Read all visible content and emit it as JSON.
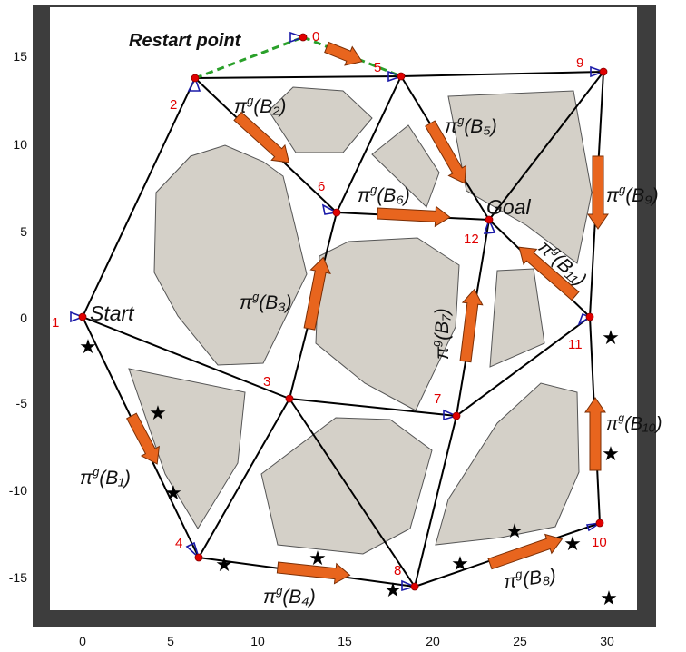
{
  "axes": {
    "x_ticks": [
      "0",
      "5",
      "10",
      "15",
      "20",
      "25",
      "30"
    ],
    "y_ticks": [
      "15",
      "10",
      "5",
      "0",
      "-5",
      "-10",
      "-15"
    ]
  },
  "labels": {
    "restart": "Restart point",
    "start": "Start",
    "goal": "Goal"
  },
  "policy_prefix": "π",
  "policy_superscript": "g",
  "policy_labels": [
    "(B₁)",
    "(B₂)",
    "(B₃)",
    "(B₄)",
    "(B₅)",
    "(B₆)",
    "(B₇)",
    "(B₈)",
    "(B₉)",
    "(B₁₀)",
    "(B₁₁)"
  ],
  "nodes": [
    "0",
    "1",
    "2",
    "3",
    "4",
    "5",
    "6",
    "7",
    "8",
    "9",
    "10",
    "11",
    "12"
  ],
  "colors": {
    "obstacle": "#d4d0c8",
    "frame": "#3d3d3d",
    "arrow": "#e8651e",
    "node": "#e00000",
    "edge": "#000000",
    "restart_path": "#2aa02a",
    "heading": "#1a1aa8"
  }
}
